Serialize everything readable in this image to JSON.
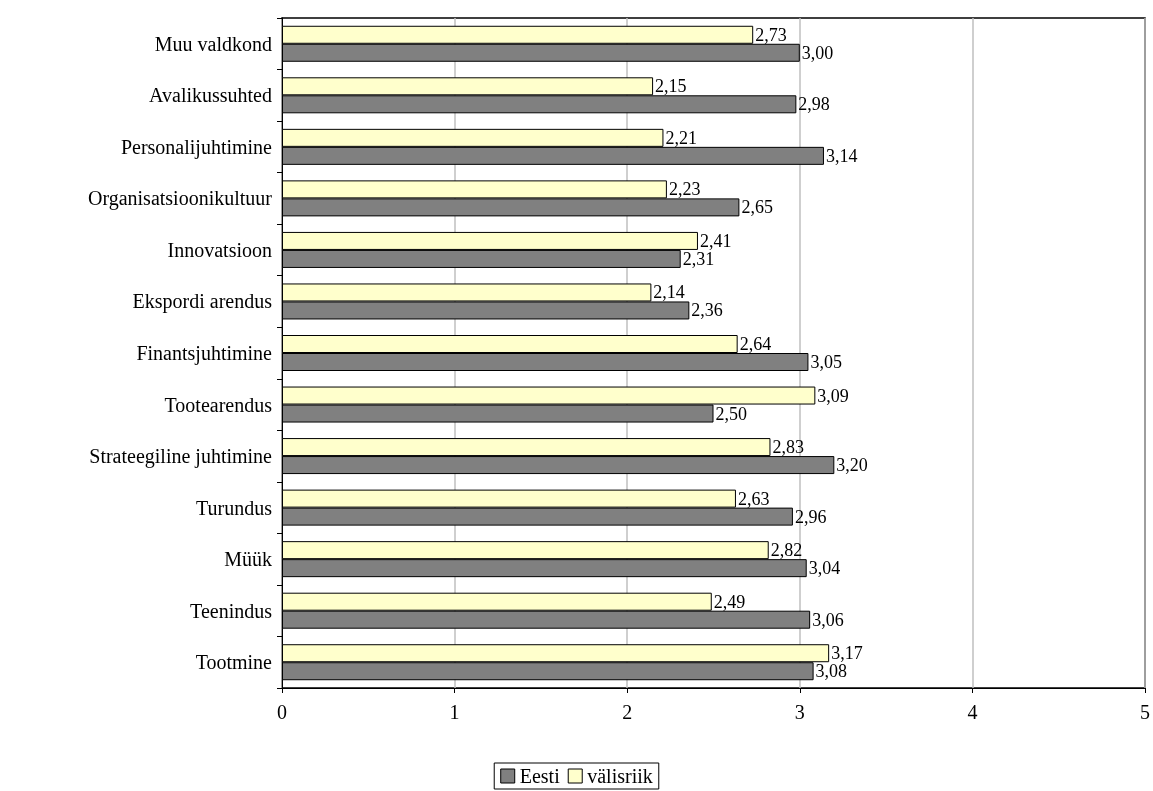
{
  "chart_data": {
    "type": "bar",
    "orientation": "horizontal",
    "categories": [
      "Muu valdkond",
      "Avalikussuhted",
      "Personalijuhtimine",
      "Organisatsioonikultuur",
      "Innovatsioon",
      "Ekspordi arendus",
      "Finantsjuhtimine",
      "Tootearendus",
      "Strateegiline juhtimine",
      "Turundus",
      "Müük",
      "Teenindus",
      "Tootmine"
    ],
    "series": [
      {
        "name": "Eesti",
        "color": "#808080",
        "values": [
          3.0,
          2.98,
          3.14,
          2.65,
          2.31,
          2.36,
          3.05,
          2.5,
          3.2,
          2.96,
          3.04,
          3.06,
          3.08
        ],
        "value_labels": [
          "3,00",
          "2,98",
          "3,14",
          "2,65",
          "2,31",
          "2,36",
          "3,05",
          "2,50",
          "3,20",
          "2,96",
          "3,04",
          "3,06",
          "3,08"
        ]
      },
      {
        "name": "välisriik",
        "color": "#ffffcc",
        "values": [
          2.73,
          2.15,
          2.21,
          2.23,
          2.41,
          2.14,
          2.64,
          3.09,
          2.83,
          2.63,
          2.82,
          2.49,
          3.17
        ],
        "value_labels": [
          "2,73",
          "2,15",
          "2,21",
          "2,23",
          "2,41",
          "2,14",
          "2,64",
          "3,09",
          "2,83",
          "2,63",
          "2,82",
          "2,49",
          "3,17"
        ]
      }
    ],
    "xlim": [
      0,
      5
    ],
    "xticks": [
      0,
      1,
      2,
      3,
      4,
      5
    ],
    "grid": "x",
    "legend": "bottom"
  }
}
